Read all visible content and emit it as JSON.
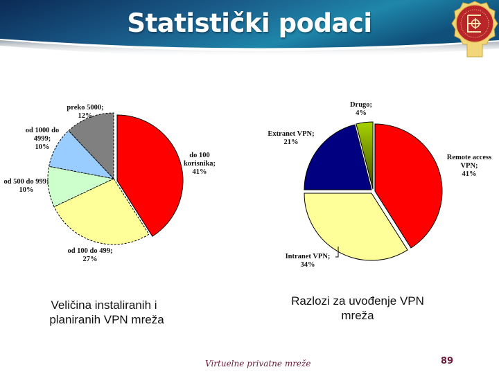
{
  "header": {
    "title": "Statistički podaci",
    "gradient_colors": [
      "#0b2a55",
      "#1a5c8a",
      "#1f86aa",
      "#0f4f7a"
    ]
  },
  "logo": {
    "icon": "university-seal-icon",
    "colors": {
      "ring": "#b8262a",
      "frame": "#f2d77a",
      "glyph": "#f5e6b0"
    }
  },
  "chart_data": [
    {
      "type": "pie",
      "title": "Veličina instaliranih i planiranih VPN mreža",
      "categories": [
        "do 100 korisnika",
        "od 100 do 499",
        "od 500 do 999",
        "od 1000 do 4999",
        "preko 5000"
      ],
      "values": [
        41,
        27,
        10,
        10,
        12
      ],
      "unit": "%",
      "colors": [
        "#ff0000",
        "#ffff99",
        "#ccffcc",
        "#99ccff",
        "#808080"
      ],
      "exploded": [
        true,
        false,
        false,
        false,
        false
      ],
      "start_angle": 0,
      "direction": "clockwise",
      "labels": [
        {
          "line1": "do 100",
          "line2": "korisnika;",
          "line3": "41%"
        },
        {
          "line1": "od 100 do 499;",
          "line2": "27%"
        },
        {
          "line1": "od 500 do 999;",
          "line2": "10%"
        },
        {
          "line1": "od 1000 do",
          "line2": "4999;",
          "line3": "10%"
        },
        {
          "line1": "preko 5000;",
          "line2": "12%"
        }
      ]
    },
    {
      "type": "pie",
      "title": "Razlozi za uvođenje VPN mreža",
      "categories": [
        "Remote access VPN",
        "Intranet VPN",
        "Extranet VPN",
        "Drugo"
      ],
      "values": [
        41,
        34,
        21,
        4
      ],
      "unit": "%",
      "colors": [
        "#ff0000",
        "#ffff99",
        "#000080",
        "#99cc00"
      ],
      "exploded": [
        true,
        true,
        false,
        false
      ],
      "start_angle": 0,
      "direction": "clockwise",
      "labels": [
        {
          "line1": "Remote access",
          "line2": "VPN;",
          "line3": "41%"
        },
        {
          "line1": "Intranet VPN;",
          "line2": "34%"
        },
        {
          "line1": "Extranet VPN;",
          "line2": "21%"
        },
        {
          "line1": "Drugo;",
          "line2": "4%"
        }
      ]
    }
  ],
  "captions": {
    "left_line1": "Veličina instaliranih i",
    "left_line2": "planiranih VPN mreža",
    "right_line1": "Razlozi za uvođenje VPN",
    "right_line2": "mreža"
  },
  "footer": {
    "text": "Virtuelne privatne mreže",
    "page_number": "89",
    "color": "#6a1a3c"
  }
}
